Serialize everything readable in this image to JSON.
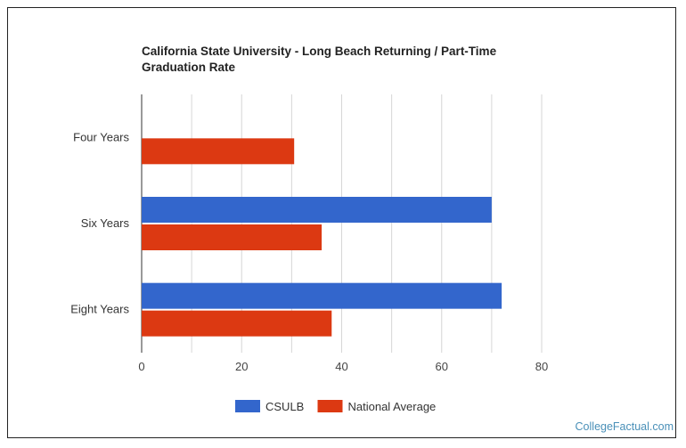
{
  "chart_data": {
    "type": "bar",
    "orientation": "horizontal",
    "title": "California State University - Long Beach Returning / Part-Time Graduation Rate",
    "categories": [
      "Four Years",
      "Six Years",
      "Eight Years"
    ],
    "series": [
      {
        "name": "CSULB",
        "color": "#3366cc",
        "values": [
          null,
          70,
          72
        ]
      },
      {
        "name": "National Average",
        "color": "#dc3912",
        "values": [
          30.5,
          36,
          38
        ]
      }
    ],
    "xlim": [
      0,
      80
    ],
    "xticks": [
      0,
      20,
      40,
      60,
      80
    ],
    "grid": true,
    "legend_position": "bottom"
  },
  "watermark": "CollegeFactual.com"
}
